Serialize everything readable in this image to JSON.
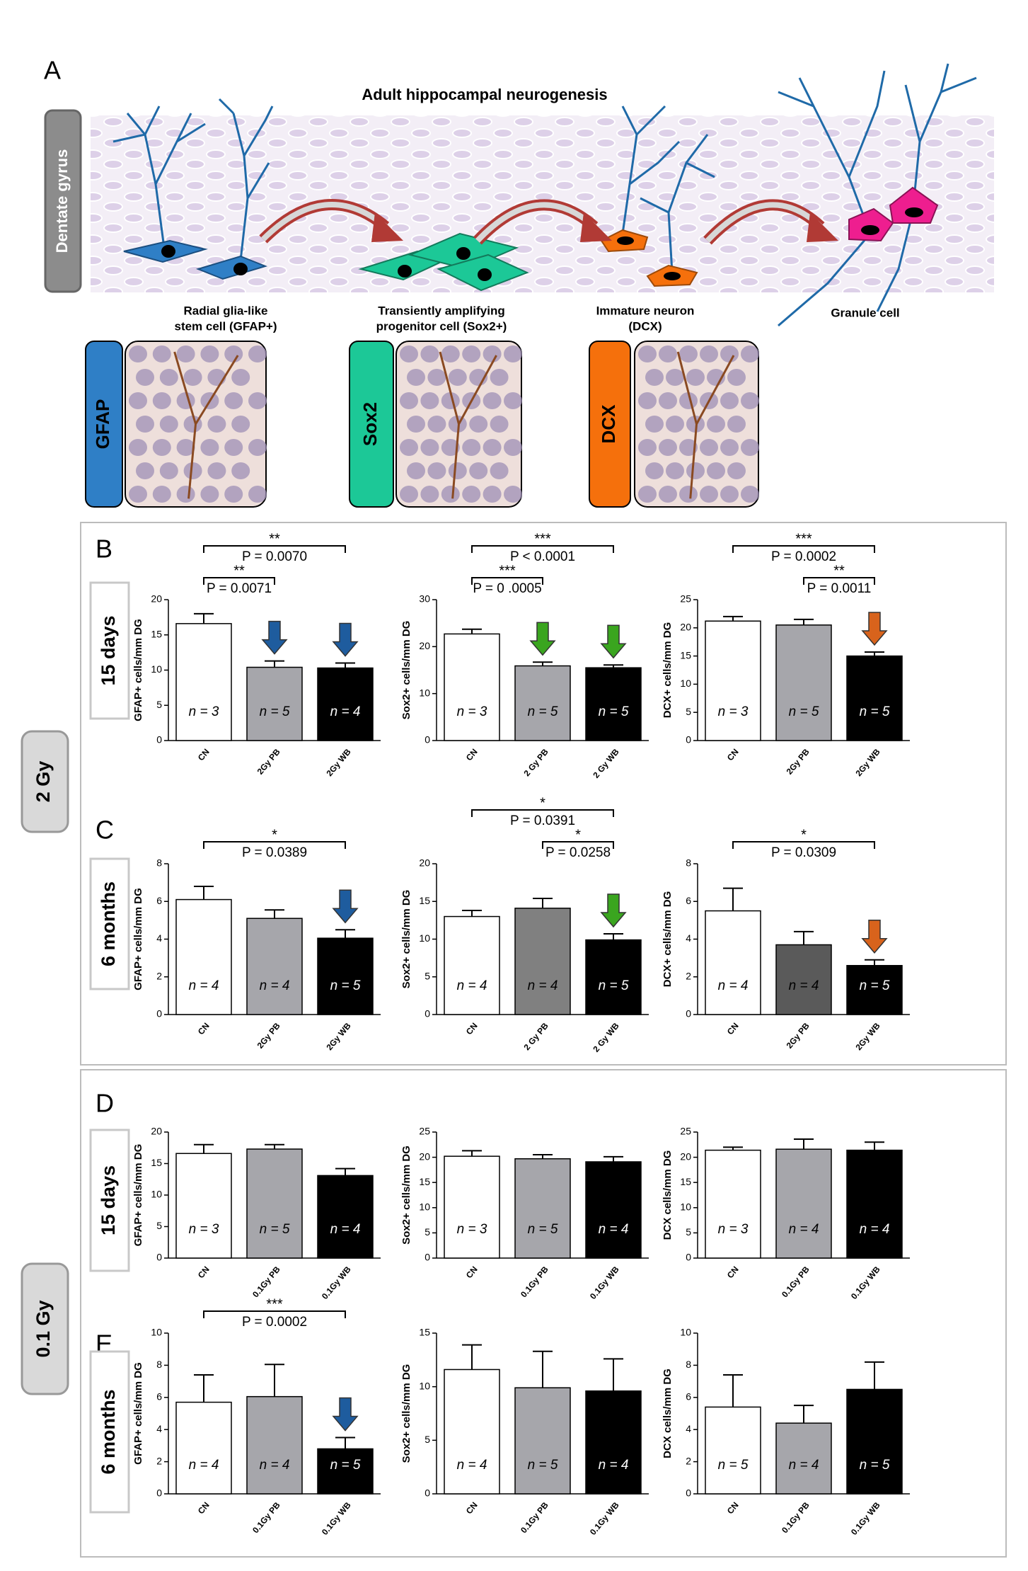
{
  "figure": {
    "panel_a": {
      "letter": "A",
      "title": "Adult hippocampal neurogenesis",
      "region": "Dentate gyrus",
      "captions": [
        [
          "Radial glia-like",
          "stem cell (GFAP+)"
        ],
        [
          "Transiently amplifying",
          "progenitor cell (Sox2+)"
        ],
        [
          "Immature neuron",
          "(DCX)"
        ],
        [
          "Granule cell"
        ]
      ],
      "markers": [
        "GFAP",
        "Sox2",
        "DCX"
      ],
      "marker_colors": [
        "#2f7fc6",
        "#1cc897",
        "#f5700c"
      ]
    },
    "panels": [
      {
        "letter": "B",
        "row": "15 days"
      },
      {
        "letter": "C",
        "row": "6 months"
      },
      {
        "letter": "D",
        "row": "15 days"
      },
      {
        "letter": "E",
        "row": "6 months"
      }
    ],
    "doses": [
      "2 Gy",
      "0.1 Gy"
    ]
  },
  "chart_data": [
    {
      "type": "bar",
      "ylabel": "GFAP+ cells/mm DG",
      "categories": [
        "CN",
        "2Gy PB",
        "2Gy WB"
      ],
      "values": [
        16.6,
        10.4,
        10.3
      ],
      "errors": [
        1.4,
        0.9,
        0.7
      ],
      "colors": [
        "#ffffff",
        "#a6a6ab",
        "#000000"
      ],
      "n_labels": [
        "n = 3",
        "n = 5",
        "n = 4"
      ],
      "ylim": [
        0,
        20
      ],
      "yticks": [
        0,
        5,
        10,
        15,
        20
      ],
      "comparisons": [
        {
          "stars": "**",
          "label": "P = 0.0070",
          "from": 0,
          "to": 2
        },
        {
          "stars": "**",
          "label": "P = 0.0071",
          "from": 0,
          "to": 1
        }
      ],
      "arrow_colors": [
        null,
        "#1e5c9e",
        "#1e5c9e"
      ]
    },
    {
      "type": "bar",
      "ylabel": "Sox2+ cells/mm DG",
      "categories": [
        "CN",
        "2 Gy PB",
        "2 Gy WB"
      ],
      "values": [
        22.7,
        15.9,
        15.5
      ],
      "errors": [
        1.0,
        0.8,
        0.6
      ],
      "colors": [
        "#ffffff",
        "#a6a6ab",
        "#000000"
      ],
      "n_labels": [
        "n = 3",
        "n = 5",
        "n = 5"
      ],
      "ylim": [
        0,
        30
      ],
      "yticks": [
        0,
        10,
        20,
        30
      ],
      "comparisons": [
        {
          "stars": "***",
          "label": "P < 0.0001",
          "from": 0,
          "to": 2
        },
        {
          "stars": "***",
          "label": "P = 0 .0005",
          "from": 0,
          "to": 1
        }
      ],
      "arrow_colors": [
        null,
        "#3aa51f",
        "#3aa51f"
      ]
    },
    {
      "type": "bar",
      "ylabel": "DCX+ cells/mm DG",
      "categories": [
        "CN",
        "2Gy PB",
        "2Gy WB"
      ],
      "values": [
        21.2,
        20.5,
        15.0
      ],
      "errors": [
        0.8,
        1.0,
        0.7
      ],
      "colors": [
        "#ffffff",
        "#a6a6ab",
        "#000000"
      ],
      "n_labels": [
        "n = 3",
        "n = 5",
        "n = 5"
      ],
      "ylim": [
        0,
        25
      ],
      "yticks": [
        0,
        5,
        10,
        15,
        20,
        25
      ],
      "comparisons": [
        {
          "stars": "***",
          "label": "P = 0.0002",
          "from": 0,
          "to": 2
        },
        {
          "stars": "**",
          "label": "P = 0.0011",
          "from": 1,
          "to": 2
        }
      ],
      "arrow_colors": [
        null,
        null,
        "#d8631c"
      ]
    },
    {
      "type": "bar",
      "ylabel": "GFAP+ cells/mm DG",
      "categories": [
        "CN",
        "2Gy PB",
        "2Gy WB"
      ],
      "values": [
        6.1,
        5.1,
        4.05
      ],
      "errors": [
        0.7,
        0.45,
        0.45
      ],
      "colors": [
        "#ffffff",
        "#a6a6ab",
        "#000000"
      ],
      "n_labels": [
        "n = 4",
        "n = 4",
        "n = 5"
      ],
      "ylim": [
        0,
        8
      ],
      "yticks": [
        0,
        2,
        4,
        6,
        8
      ],
      "comparisons": [
        {
          "stars": "*",
          "label": "P = 0.0389",
          "from": 0,
          "to": 2
        }
      ],
      "arrow_colors": [
        null,
        null,
        "#1e5c9e"
      ]
    },
    {
      "type": "bar",
      "ylabel": "Sox2+ cells/mm DG",
      "categories": [
        "CN",
        "2 Gy PB",
        "2 Gy WB"
      ],
      "values": [
        13.0,
        14.1,
        9.9
      ],
      "errors": [
        0.8,
        1.3,
        0.8
      ],
      "colors": [
        "#ffffff",
        "#808080",
        "#000000"
      ],
      "n_labels": [
        "n = 4",
        "n = 4",
        "n = 5"
      ],
      "ylim": [
        0,
        20
      ],
      "yticks": [
        0,
        5,
        10,
        15,
        20
      ],
      "comparisons": [
        {
          "stars": "*",
          "label": "P = 0.0391",
          "from": 0,
          "to": 2
        },
        {
          "stars": "*",
          "label": "P = 0.0258",
          "from": 1,
          "to": 2
        }
      ],
      "arrow_colors": [
        null,
        null,
        "#3aa51f"
      ]
    },
    {
      "type": "bar",
      "ylabel": "DCX+ cells/mm DG",
      "categories": [
        "CN",
        "2Gy PB",
        "2Gy WB"
      ],
      "values": [
        5.5,
        3.7,
        2.6
      ],
      "errors": [
        1.2,
        0.7,
        0.3
      ],
      "colors": [
        "#ffffff",
        "#5a5a5a",
        "#000000"
      ],
      "n_labels": [
        "n = 4",
        "n = 4",
        "n = 5"
      ],
      "ylim": [
        0,
        8
      ],
      "yticks": [
        0,
        2,
        4,
        6,
        8
      ],
      "comparisons": [
        {
          "stars": "*",
          "label": "P = 0.0309",
          "from": 0,
          "to": 2
        }
      ],
      "arrow_colors": [
        null,
        null,
        "#d8631c"
      ]
    },
    {
      "type": "bar",
      "ylabel": "GFAP+ cells/mm DG",
      "categories": [
        "CN",
        "0.1Gy PB",
        "0.1Gy WB"
      ],
      "values": [
        16.6,
        17.3,
        13.1
      ],
      "errors": [
        1.4,
        0.7,
        1.1
      ],
      "colors": [
        "#ffffff",
        "#a6a6ab",
        "#000000"
      ],
      "n_labels": [
        "n = 3",
        "n = 5",
        "n = 4"
      ],
      "ylim": [
        0,
        20
      ],
      "yticks": [
        0,
        5,
        10,
        15,
        20
      ],
      "comparisons": [],
      "arrow_colors": [
        null,
        null,
        null
      ]
    },
    {
      "type": "bar",
      "ylabel": "Sox2+ cells/mm DG",
      "categories": [
        "CN",
        "0.1Gy PB",
        "0.1Gy WB"
      ],
      "values": [
        20.2,
        19.7,
        19.1
      ],
      "errors": [
        1.1,
        0.8,
        1.0
      ],
      "colors": [
        "#ffffff",
        "#a6a6ab",
        "#000000"
      ],
      "n_labels": [
        "n = 3",
        "n = 5",
        "n = 4"
      ],
      "ylim": [
        0,
        25
      ],
      "yticks": [
        0,
        5,
        10,
        15,
        20,
        25
      ],
      "comparisons": [],
      "arrow_colors": [
        null,
        null,
        null
      ]
    },
    {
      "type": "bar",
      "ylabel": "DCX cells/mm DG",
      "categories": [
        "CN",
        "0.1Gy PB",
        "0.1Gy WB"
      ],
      "values": [
        21.4,
        21.6,
        21.4
      ],
      "errors": [
        0.6,
        2.0,
        1.6
      ],
      "colors": [
        "#ffffff",
        "#a6a6ab",
        "#000000"
      ],
      "n_labels": [
        "n = 3",
        "n = 4",
        "n = 4"
      ],
      "ylim": [
        0,
        25
      ],
      "yticks": [
        0,
        5,
        10,
        15,
        20,
        25
      ],
      "comparisons": [],
      "arrow_colors": [
        null,
        null,
        null
      ]
    },
    {
      "type": "bar",
      "ylabel": "GFAP+ cells/mm DG",
      "categories": [
        "CN",
        "0.1Gy PB",
        "0.1Gy WB"
      ],
      "values": [
        5.7,
        6.05,
        2.8
      ],
      "errors": [
        1.7,
        2.0,
        0.7
      ],
      "colors": [
        "#ffffff",
        "#a6a6ab",
        "#000000"
      ],
      "n_labels": [
        "n = 4",
        "n = 4",
        "n = 5"
      ],
      "ylim": [
        0,
        10
      ],
      "yticks": [
        0,
        2,
        4,
        6,
        8,
        10
      ],
      "comparisons": [
        {
          "stars": "***",
          "label": "P = 0.0002",
          "from": 0,
          "to": 2
        }
      ],
      "arrow_colors": [
        null,
        null,
        "#1e5c9e"
      ]
    },
    {
      "type": "bar",
      "ylabel": "Sox2+ cells/mm DG",
      "categories": [
        "CN",
        "0.1Gy PB",
        "0.1Gy WB"
      ],
      "values": [
        11.6,
        9.9,
        9.6
      ],
      "errors": [
        2.3,
        3.4,
        3.0
      ],
      "colors": [
        "#ffffff",
        "#a6a6ab",
        "#000000"
      ],
      "n_labels": [
        "n = 4",
        "n = 5",
        "n = 4"
      ],
      "ylim": [
        0,
        15
      ],
      "yticks": [
        0,
        5,
        10,
        15
      ],
      "comparisons": [],
      "arrow_colors": [
        null,
        null,
        null
      ]
    },
    {
      "type": "bar",
      "ylabel": "DCX cells/mm DG",
      "categories": [
        "CN",
        "0.1Gy PB",
        "0.1Gy WB"
      ],
      "values": [
        5.4,
        4.4,
        6.5
      ],
      "errors": [
        2.0,
        1.1,
        1.7
      ],
      "colors": [
        "#ffffff",
        "#a6a6ab",
        "#000000"
      ],
      "n_labels": [
        "n = 5",
        "n = 4",
        "n = 5"
      ],
      "ylim": [
        0,
        10
      ],
      "yticks": [
        0,
        2,
        4,
        6,
        8,
        10
      ],
      "comparisons": [],
      "arrow_colors": [
        null,
        null,
        null
      ]
    }
  ]
}
